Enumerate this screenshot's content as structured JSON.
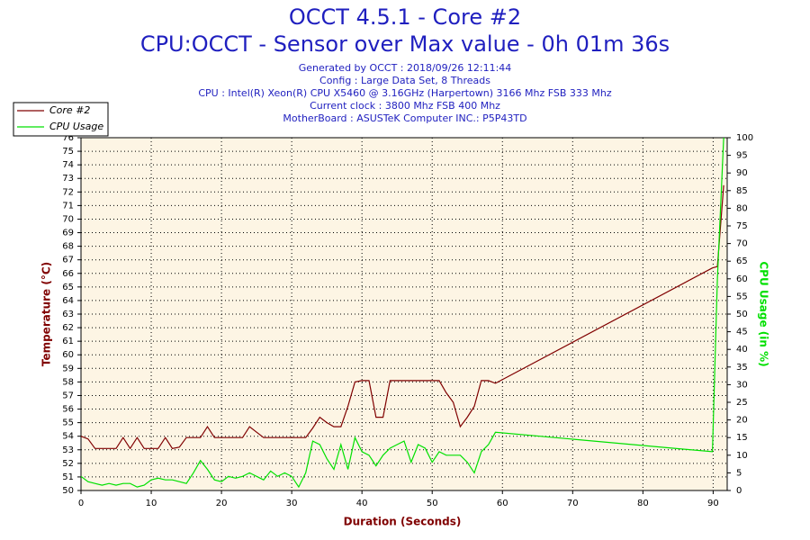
{
  "chart_data": {
    "type": "line",
    "title": "OCCT 4.5.1 - Core #2",
    "subtitle": "CPU:OCCT - Sensor over Max value - 0h 01m 36s",
    "info": [
      "Generated by OCCT : 2018/09/26 12:11:44",
      "Config : Large Data Set, 8 Threads",
      "CPU : Intel(R) Xeon(R) CPU X5460 @ 3.16GHz (Harpertown) 3166 Mhz FSB 333 Mhz",
      "Current clock : 3800 Mhz FSB 400 Mhz",
      "MotherBoard : ASUSTeK Computer INC.: P5P43TD"
    ],
    "xlabel": "Duration (Seconds)",
    "ylabel": "Temperature (°C)",
    "y2label": "CPU Usage (in %)",
    "x": [
      0,
      1,
      2,
      3,
      4,
      5,
      6,
      7,
      8,
      9,
      10,
      11,
      12,
      13,
      14,
      15,
      16,
      17,
      18,
      19,
      20,
      21,
      22,
      23,
      24,
      25,
      26,
      27,
      28,
      29,
      30,
      31,
      32,
      33,
      34,
      35,
      36,
      37,
      38,
      39,
      40,
      41,
      42,
      43,
      44,
      45,
      46,
      47,
      48,
      49,
      50,
      51,
      52,
      53,
      54,
      55,
      56,
      57,
      58,
      59,
      89.9,
      90.6,
      91.5
    ],
    "series": [
      {
        "name": "Core #2",
        "color": "#800000",
        "values": [
          54,
          53.8,
          53.1,
          53.1,
          53.1,
          53.1,
          53.9,
          53.1,
          53.9,
          53.1,
          53.1,
          53.1,
          53.9,
          53.1,
          53.2,
          53.9,
          53.9,
          53.9,
          54.7,
          53.9,
          53.9,
          53.9,
          53.9,
          53.9,
          54.7,
          54.3,
          53.9,
          53.9,
          53.9,
          53.9,
          53.9,
          53.9,
          53.9,
          54.6,
          55.4,
          55,
          54.7,
          54.7,
          56.2,
          58,
          58.1,
          58.1,
          55.4,
          55.4,
          58.1,
          58.1,
          58.1,
          58.1,
          58.1,
          58.1,
          58.1,
          58.1,
          57.2,
          56.5,
          54.7,
          55.4,
          56.2,
          58.1,
          58.1,
          57.9,
          66.4,
          66.5,
          72.5
        ]
      },
      {
        "name": "CPU Usage",
        "color": "#00e000",
        "axis": "y2",
        "values": [
          4,
          2.5,
          2,
          1.5,
          2,
          1.5,
          2,
          2,
          1,
          1.5,
          3,
          3.5,
          3,
          3,
          2.5,
          2,
          5,
          8.5,
          6,
          3,
          2.5,
          4,
          3.5,
          4,
          5,
          4,
          3,
          5.5,
          4,
          5,
          4,
          1,
          5,
          14,
          13,
          9,
          6,
          13,
          6,
          15,
          11,
          10,
          7,
          10,
          12,
          13,
          14,
          8,
          13,
          12,
          8,
          11,
          10,
          10,
          10,
          8,
          5,
          11,
          13,
          16.5,
          11,
          60,
          100
        ]
      }
    ],
    "xlim": [
      0,
      92
    ],
    "xticks": [
      0,
      10,
      20,
      30,
      40,
      50,
      60,
      70,
      80,
      90
    ],
    "ylim": [
      50,
      76
    ],
    "yticks": [
      50,
      51,
      52,
      53,
      54,
      55,
      56,
      57,
      58,
      59,
      60,
      61,
      62,
      63,
      64,
      65,
      66,
      67,
      68,
      69,
      70,
      71,
      72,
      73,
      74,
      75,
      76
    ],
    "y2lim": [
      0,
      100
    ],
    "y2ticks": [
      0,
      5,
      10,
      15,
      20,
      25,
      30,
      35,
      40,
      45,
      50,
      55,
      60,
      65,
      70,
      75,
      80,
      85,
      90,
      95,
      100
    ],
    "grid": true,
    "legend": "top-left",
    "background": "#fdf5e4"
  }
}
